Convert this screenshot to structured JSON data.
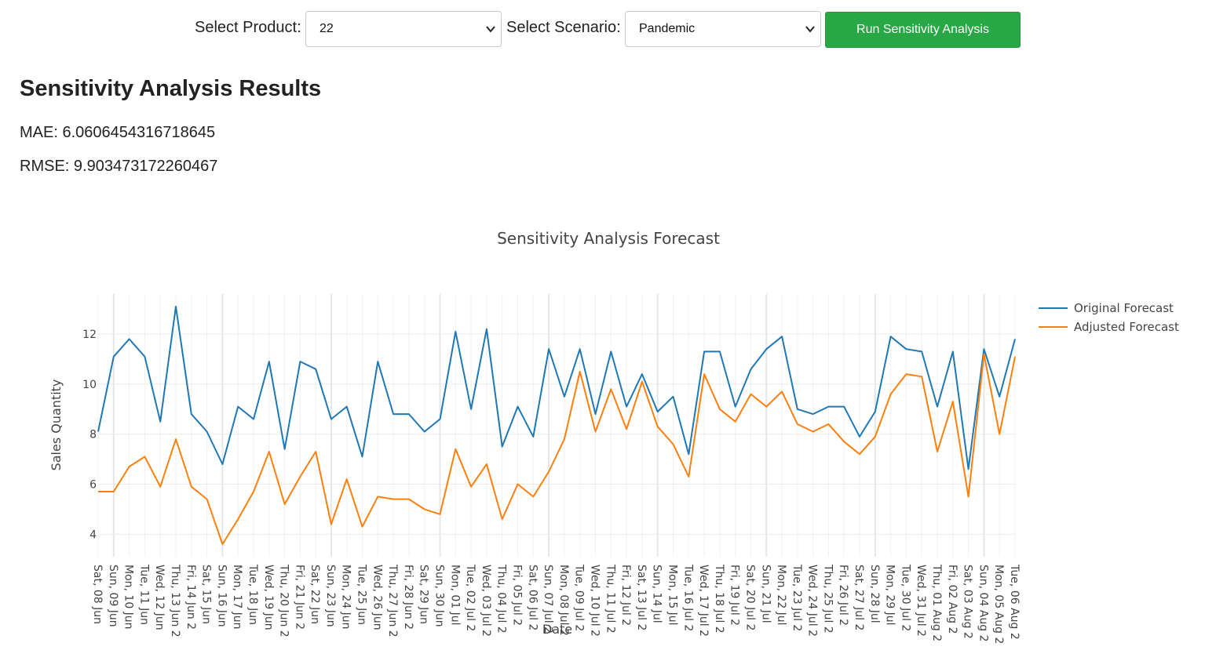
{
  "controls": {
    "product_label": "Select Product:",
    "product_value": "22",
    "scenario_label": "Select Scenario:",
    "scenario_value": "Pandemic",
    "run_label": "Run Sensitivity Analysis",
    "run_color": "#28a745"
  },
  "results": {
    "title": "Sensitivity Analysis Results",
    "mae": "MAE: 6.0606454316718645",
    "rmse": "RMSE: 9.903473172260467"
  },
  "chart_data": {
    "type": "line",
    "title": "Sensitivity Analysis Forecast",
    "xlabel": "Date",
    "ylabel": "Sales Quantity",
    "ylim": [
      3.1,
      13.6
    ],
    "yticks": [
      4,
      6,
      8,
      10,
      12
    ],
    "grid": true,
    "legend_position": "top-right",
    "x": [
      "Sat, 08 Jun",
      "Sun, 09 Jun",
      "Mon, 10 Jun",
      "Tue, 11 Jun",
      "Wed, 12 Jun",
      "Thu, 13 Jun",
      "Fri, 14 Jun",
      "Sat, 15 Jun",
      "Sun, 16 Jun",
      "Mon, 17 Jun",
      "Tue, 18 Jun",
      "Wed, 19 Jun",
      "Thu, 20 Jun",
      "Fri, 21 Jun",
      "Sat, 22 Jun",
      "Sun, 23 Jun",
      "Mon, 24 Jun",
      "Tue, 25 Jun",
      "Wed, 26 Jun",
      "Thu, 27 Jun",
      "Fri, 28 Jun",
      "Sat, 29 Jun",
      "Sun, 30 Jun",
      "Mon, 01 Jul",
      "Tue, 02 Jul",
      "Wed, 03 Jul",
      "Thu, 04 Jul",
      "Fri, 05 Jul",
      "Sat, 06 Jul",
      "Sun, 07 Jul",
      "Mon, 08 Jul",
      "Tue, 09 Jul",
      "Wed, 10 Jul",
      "Thu, 11 Jul",
      "Fri, 12 Jul",
      "Sat, 13 Jul",
      "Sun, 14 Jul",
      "Mon, 15 Jul",
      "Tue, 16 Jul",
      "Wed, 17 Jul",
      "Thu, 18 Jul",
      "Fri, 19 Jul",
      "Sat, 20 Jul",
      "Sun, 21 Jul",
      "Mon, 22 Jul",
      "Tue, 23 Jul",
      "Wed, 24 Jul",
      "Thu, 25 Jul",
      "Fri, 26 Jul",
      "Sat, 27 Jul",
      "Sun, 28 Jul",
      "Mon, 29 Jul",
      "Tue, 30 Jul",
      "Wed, 31 Jul",
      "Thu, 01 Aug",
      "Fri, 02 Aug",
      "Sat, 03 Aug",
      "Sun, 04 Aug",
      "Mon, 05 Aug",
      "Tue, 06 Aug"
    ],
    "tick_labels": [
      "Sat, 08 Jun",
      "Sun, 09 Jun",
      "Mon, 10 Jun",
      "Tue, 11 Jun",
      "Wed, 12 Jun",
      "Thu, 13 Jun 2",
      "Fri, 14 Jun 2",
      "Sat, 15 Jun",
      "Sun, 16 Jun",
      "Mon, 17 Jun",
      "Tue, 18 Jun",
      "Wed, 19 Jun",
      "Thu, 20 Jun 2",
      "Fri, 21 Jun 2",
      "Sat, 22 Jun",
      "Sun, 23 Jun",
      "Mon, 24 Jun",
      "Tue, 25 Jun",
      "Wed, 26 Jun",
      "Thu, 27 Jun 2",
      "Fri, 28 Jun 2",
      "Sat, 29 Jun",
      "Sun, 30 Jun",
      "Mon, 01 Jul",
      "Tue, 02 Jul 2",
      "Wed, 03 Jul 2",
      "Thu, 04 Jul 2",
      "Fri, 05 Jul 2",
      "Sat, 06 Jul 2",
      "Sun, 07 Jul 2",
      "Mon, 08 Jul 2",
      "Tue, 09 Jul 2",
      "Wed, 10 Jul 2",
      "Thu, 11 Jul 2",
      "Fri, 12 Jul 2",
      "Sat, 13 Jul 2",
      "Sun, 14 Jul",
      "Mon, 15 Jul",
      "Tue, 16 Jul 2",
      "Wed, 17 Jul 2",
      "Thu, 18 Jul 2",
      "Fri, 19 Jul 2",
      "Sat, 20 Jul 2",
      "Sun, 21 Jul",
      "Mon, 22 Jul",
      "Tue, 23 Jul 2",
      "Wed, 24 Jul 2",
      "Thu, 25 Jul 2",
      "Fri, 26 Jul 2",
      "Sat, 27 Jul 2",
      "Sun, 28 Jul",
      "Mon, 29 Jul",
      "Tue, 30 Jul 2",
      "Wed, 31 Jul 2",
      "Thu, 01 Aug 2",
      "Fri, 02 Aug 2",
      "Sat, 03 Aug 2",
      "Sun, 04 Aug 2",
      "Mon, 05 Aug 2",
      "Tue, 06 Aug 2"
    ],
    "series": [
      {
        "name": "Original Forecast",
        "color": "#1f77b4",
        "values": [
          8.1,
          11.1,
          11.8,
          11.1,
          8.5,
          13.1,
          8.8,
          8.1,
          6.8,
          9.1,
          8.6,
          10.9,
          7.4,
          10.9,
          10.6,
          8.6,
          9.1,
          7.1,
          10.9,
          8.8,
          8.8,
          8.1,
          8.6,
          12.1,
          9.0,
          12.2,
          7.5,
          9.1,
          7.9,
          11.4,
          9.5,
          11.4,
          8.8,
          11.3,
          9.1,
          10.4,
          8.9,
          9.5,
          7.2,
          11.3,
          11.3,
          9.1,
          10.6,
          11.4,
          11.9,
          9.0,
          8.8,
          9.1,
          9.1,
          7.9,
          8.9,
          11.9,
          11.4,
          11.3,
          9.1,
          11.3,
          6.6,
          11.4,
          9.5,
          11.8
        ]
      },
      {
        "name": "Adjusted Forecast",
        "color": "#ff7f0e",
        "values": [
          5.7,
          5.7,
          6.7,
          7.1,
          5.9,
          7.8,
          5.9,
          5.4,
          3.6,
          4.6,
          5.7,
          7.3,
          5.2,
          6.3,
          7.3,
          4.4,
          6.2,
          4.3,
          5.5,
          5.4,
          5.4,
          5.0,
          4.8,
          7.4,
          5.9,
          6.8,
          4.6,
          6.0,
          5.5,
          6.5,
          7.8,
          10.5,
          8.1,
          9.8,
          8.2,
          10.1,
          8.3,
          7.6,
          6.3,
          10.4,
          9.0,
          8.5,
          9.6,
          9.1,
          9.7,
          8.4,
          8.1,
          8.4,
          7.7,
          7.2,
          7.9,
          9.6,
          10.4,
          10.3,
          7.3,
          9.3,
          5.5,
          11.2,
          8.0,
          11.1
        ]
      }
    ]
  }
}
